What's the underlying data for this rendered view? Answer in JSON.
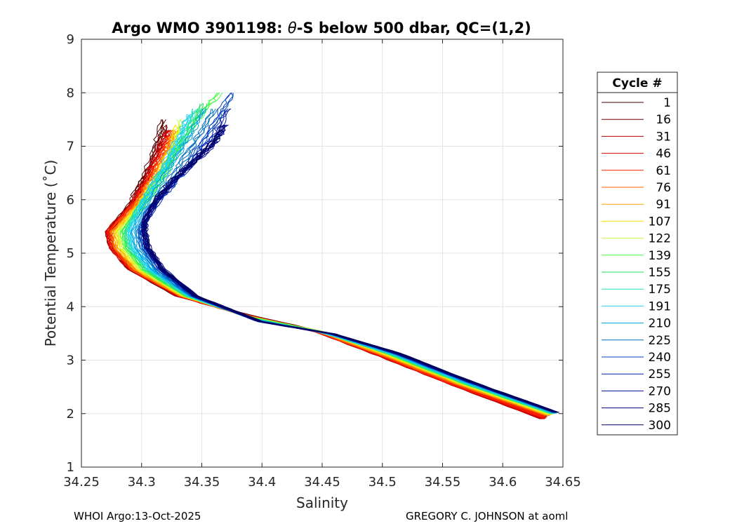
{
  "chart_data": {
    "type": "line",
    "title_pre": "Argo WMO 3901198: ",
    "title_theta": "θ",
    "title_post": "-S below 500 dbar,  QC=(1,2)",
    "xlabel": "Salinity",
    "ylabel": "Potential Temperature (˚C)",
    "xlim": [
      34.25,
      34.65
    ],
    "ylim": [
      1,
      9
    ],
    "x_ticks": [
      "34.25",
      "34.3",
      "34.35",
      "34.4",
      "34.45",
      "34.5",
      "34.55",
      "34.6",
      "34.65"
    ],
    "y_ticks": [
      "1",
      "2",
      "3",
      "4",
      "5",
      "6",
      "7",
      "8",
      "9"
    ],
    "grid": true,
    "legend_title": "Cycle #",
    "legend_position": "right",
    "series": [
      {
        "name": "1",
        "color": "#4a0000",
        "points": [
          [
            34.318,
            7.5
          ],
          [
            34.312,
            7.0
          ],
          [
            34.302,
            6.4
          ],
          [
            34.29,
            5.9
          ],
          [
            34.272,
            5.4
          ],
          [
            34.275,
            5.1
          ],
          [
            34.29,
            4.7
          ],
          [
            34.33,
            4.2
          ],
          [
            34.385,
            3.85
          ],
          [
            34.445,
            3.55
          ],
          [
            34.5,
            3.1
          ],
          [
            34.56,
            2.55
          ],
          [
            34.635,
            1.95
          ]
        ]
      },
      {
        "name": "16",
        "color": "#7a0000",
        "points": [
          [
            34.32,
            7.4
          ],
          [
            34.314,
            7.0
          ],
          [
            34.303,
            6.4
          ],
          [
            34.291,
            5.9
          ],
          [
            34.273,
            5.4
          ],
          [
            34.276,
            5.1
          ],
          [
            34.291,
            4.7
          ],
          [
            34.331,
            4.2
          ],
          [
            34.386,
            3.86
          ],
          [
            34.446,
            3.55
          ],
          [
            34.5,
            3.09
          ],
          [
            34.56,
            2.54
          ],
          [
            34.634,
            1.92
          ]
        ]
      },
      {
        "name": "31",
        "color": "#b30000",
        "points": [
          [
            34.322,
            7.3
          ],
          [
            34.315,
            6.95
          ],
          [
            34.304,
            6.4
          ],
          [
            34.292,
            5.9
          ],
          [
            34.271,
            5.4
          ],
          [
            34.275,
            5.1
          ],
          [
            34.29,
            4.7
          ],
          [
            34.33,
            4.2
          ],
          [
            34.386,
            3.84
          ],
          [
            34.446,
            3.53
          ],
          [
            34.499,
            3.07
          ],
          [
            34.559,
            2.53
          ],
          [
            34.633,
            1.9
          ]
        ]
      },
      {
        "name": "46",
        "color": "#e00000",
        "points": [
          [
            34.323,
            7.3
          ],
          [
            34.316,
            6.95
          ],
          [
            34.305,
            6.4
          ],
          [
            34.292,
            5.9
          ],
          [
            34.272,
            5.4
          ],
          [
            34.275,
            5.1
          ],
          [
            34.291,
            4.7
          ],
          [
            34.331,
            4.2
          ],
          [
            34.387,
            3.84
          ],
          [
            34.447,
            3.53
          ],
          [
            34.5,
            3.07
          ],
          [
            34.56,
            2.53
          ],
          [
            34.634,
            1.91
          ]
        ]
      },
      {
        "name": "61",
        "color": "#ff2000",
        "points": [
          [
            34.325,
            7.2
          ],
          [
            34.318,
            6.9
          ],
          [
            34.306,
            6.4
          ],
          [
            34.293,
            5.9
          ],
          [
            34.273,
            5.4
          ],
          [
            34.276,
            5.1
          ],
          [
            34.292,
            4.7
          ],
          [
            34.332,
            4.2
          ],
          [
            34.387,
            3.83
          ],
          [
            34.447,
            3.52
          ],
          [
            34.501,
            3.07
          ],
          [
            34.561,
            2.53
          ],
          [
            34.635,
            1.93
          ]
        ]
      },
      {
        "name": "76",
        "color": "#ff6000",
        "points": [
          [
            34.326,
            7.3
          ],
          [
            34.32,
            6.9
          ],
          [
            34.308,
            6.4
          ],
          [
            34.294,
            5.9
          ],
          [
            34.275,
            5.4
          ],
          [
            34.278,
            5.1
          ],
          [
            34.293,
            4.7
          ],
          [
            34.333,
            4.2
          ],
          [
            34.388,
            3.82
          ],
          [
            34.448,
            3.52
          ],
          [
            34.502,
            3.08
          ],
          [
            34.562,
            2.55
          ],
          [
            34.637,
            1.96
          ]
        ]
      },
      {
        "name": "91",
        "color": "#ffa000",
        "points": [
          [
            34.328,
            7.3
          ],
          [
            34.322,
            6.9
          ],
          [
            34.31,
            6.4
          ],
          [
            34.296,
            5.9
          ],
          [
            34.277,
            5.4
          ],
          [
            34.28,
            5.1
          ],
          [
            34.295,
            4.7
          ],
          [
            34.334,
            4.2
          ],
          [
            34.389,
            3.82
          ],
          [
            34.449,
            3.53
          ],
          [
            34.503,
            3.09
          ],
          [
            34.563,
            2.56
          ],
          [
            34.638,
            1.97
          ]
        ]
      },
      {
        "name": "107",
        "color": "#ffe000",
        "points": [
          [
            34.33,
            7.4
          ],
          [
            34.324,
            6.9
          ],
          [
            34.312,
            6.4
          ],
          [
            34.298,
            5.9
          ],
          [
            34.279,
            5.4
          ],
          [
            34.282,
            5.1
          ],
          [
            34.297,
            4.7
          ],
          [
            34.335,
            4.2
          ],
          [
            34.39,
            3.81
          ],
          [
            34.45,
            3.53
          ],
          [
            34.504,
            3.1
          ],
          [
            34.564,
            2.57
          ],
          [
            34.639,
            1.98
          ]
        ]
      },
      {
        "name": "122",
        "color": "#c0ff40",
        "points": [
          [
            34.333,
            7.5
          ],
          [
            34.327,
            6.9
          ],
          [
            34.315,
            6.4
          ],
          [
            34.3,
            5.9
          ],
          [
            34.281,
            5.4
          ],
          [
            34.284,
            5.1
          ],
          [
            34.299,
            4.7
          ],
          [
            34.336,
            4.2
          ],
          [
            34.391,
            3.8
          ],
          [
            34.451,
            3.53
          ],
          [
            34.505,
            3.11
          ],
          [
            34.565,
            2.58
          ],
          [
            34.64,
            1.99
          ]
        ]
      },
      {
        "name": "139",
        "color": "#40ff40",
        "points": [
          [
            34.365,
            8.0
          ],
          [
            34.35,
            7.6
          ],
          [
            34.335,
            7.1
          ],
          [
            34.32,
            6.5
          ],
          [
            34.303,
            5.9
          ],
          [
            34.284,
            5.4
          ],
          [
            34.287,
            5.1
          ],
          [
            34.301,
            4.7
          ],
          [
            34.337,
            4.2
          ],
          [
            34.392,
            3.79
          ],
          [
            34.452,
            3.52
          ],
          [
            34.506,
            3.11
          ],
          [
            34.566,
            2.58
          ],
          [
            34.641,
            2.0
          ]
        ]
      },
      {
        "name": "155",
        "color": "#20e060",
        "points": [
          [
            34.352,
            7.8
          ],
          [
            34.338,
            7.3
          ],
          [
            34.324,
            6.8
          ],
          [
            34.31,
            6.3
          ],
          [
            34.296,
            5.8
          ],
          [
            34.286,
            5.4
          ],
          [
            34.289,
            5.1
          ],
          [
            34.303,
            4.7
          ],
          [
            34.338,
            4.2
          ],
          [
            34.393,
            3.78
          ],
          [
            34.453,
            3.51
          ],
          [
            34.507,
            3.11
          ],
          [
            34.567,
            2.58
          ],
          [
            34.641,
            2.0
          ]
        ]
      },
      {
        "name": "175",
        "color": "#20e0c0",
        "points": [
          [
            34.345,
            7.7
          ],
          [
            34.335,
            7.2
          ],
          [
            34.322,
            6.7
          ],
          [
            34.308,
            6.2
          ],
          [
            34.296,
            5.8
          ],
          [
            34.288,
            5.4
          ],
          [
            34.291,
            5.1
          ],
          [
            34.305,
            4.7
          ],
          [
            34.339,
            4.2
          ],
          [
            34.393,
            3.77
          ],
          [
            34.453,
            3.5
          ],
          [
            34.508,
            3.11
          ],
          [
            34.568,
            2.58
          ],
          [
            34.642,
            2.0
          ]
        ]
      },
      {
        "name": "191",
        "color": "#20d0ff",
        "points": [
          [
            34.34,
            7.6
          ],
          [
            34.332,
            7.2
          ],
          [
            34.32,
            6.7
          ],
          [
            34.308,
            6.2
          ],
          [
            34.297,
            5.8
          ],
          [
            34.29,
            5.4
          ],
          [
            34.293,
            5.1
          ],
          [
            34.307,
            4.7
          ],
          [
            34.34,
            4.2
          ],
          [
            34.394,
            3.76
          ],
          [
            34.454,
            3.5
          ],
          [
            34.509,
            3.12
          ],
          [
            34.569,
            2.59
          ],
          [
            34.643,
            2.01
          ]
        ]
      },
      {
        "name": "210",
        "color": "#00a0e0",
        "points": [
          [
            34.352,
            7.7
          ],
          [
            34.34,
            7.2
          ],
          [
            34.326,
            6.7
          ],
          [
            34.312,
            6.2
          ],
          [
            34.301,
            5.8
          ],
          [
            34.293,
            5.4
          ],
          [
            34.296,
            5.1
          ],
          [
            34.309,
            4.7
          ],
          [
            34.341,
            4.2
          ],
          [
            34.395,
            3.75
          ],
          [
            34.455,
            3.5
          ],
          [
            34.51,
            3.12
          ],
          [
            34.57,
            2.59
          ],
          [
            34.643,
            2.01
          ]
        ]
      },
      {
        "name": "225",
        "color": "#0070c0",
        "points": [
          [
            34.36,
            7.7
          ],
          [
            34.348,
            7.2
          ],
          [
            34.333,
            6.7
          ],
          [
            34.318,
            6.2
          ],
          [
            34.306,
            5.8
          ],
          [
            34.297,
            5.4
          ],
          [
            34.3,
            5.1
          ],
          [
            34.312,
            4.7
          ],
          [
            34.342,
            4.2
          ],
          [
            34.396,
            3.74
          ],
          [
            34.456,
            3.5
          ],
          [
            34.511,
            3.13
          ],
          [
            34.571,
            2.6
          ],
          [
            34.644,
            2.02
          ]
        ]
      },
      {
        "name": "240",
        "color": "#0040c0",
        "points": [
          [
            34.375,
            8.0
          ],
          [
            34.362,
            7.5
          ],
          [
            34.348,
            7.0
          ],
          [
            34.334,
            6.5
          ],
          [
            34.318,
            6.1
          ],
          [
            34.305,
            5.8
          ],
          [
            34.299,
            5.4
          ],
          [
            34.302,
            5.1
          ],
          [
            34.314,
            4.7
          ],
          [
            34.343,
            4.2
          ],
          [
            34.397,
            3.73
          ],
          [
            34.457,
            3.5
          ],
          [
            34.511,
            3.13
          ],
          [
            34.571,
            2.6
          ],
          [
            34.644,
            2.02
          ]
        ]
      },
      {
        "name": "255",
        "color": "#0020b0",
        "points": [
          [
            34.372,
            7.7
          ],
          [
            34.36,
            7.2
          ],
          [
            34.346,
            6.8
          ],
          [
            34.33,
            6.4
          ],
          [
            34.315,
            6.0
          ],
          [
            34.303,
            5.6
          ],
          [
            34.301,
            5.4
          ],
          [
            34.304,
            5.1
          ],
          [
            34.316,
            4.7
          ],
          [
            34.344,
            4.2
          ],
          [
            34.398,
            3.72
          ],
          [
            34.458,
            3.49
          ],
          [
            34.512,
            3.13
          ],
          [
            34.572,
            2.6
          ],
          [
            34.645,
            2.02
          ]
        ]
      },
      {
        "name": "270",
        "color": "#0010a0",
        "points": [
          [
            34.37,
            7.4
          ],
          [
            34.358,
            7.0
          ],
          [
            34.344,
            6.7
          ],
          [
            34.329,
            6.4
          ],
          [
            34.314,
            6.0
          ],
          [
            34.303,
            5.6
          ],
          [
            34.302,
            5.4
          ],
          [
            34.305,
            5.1
          ],
          [
            34.317,
            4.7
          ],
          [
            34.344,
            4.2
          ],
          [
            34.398,
            3.72
          ],
          [
            34.458,
            3.49
          ],
          [
            34.512,
            3.13
          ],
          [
            34.572,
            2.6
          ],
          [
            34.645,
            2.02
          ]
        ]
      },
      {
        "name": "285",
        "color": "#00007a",
        "points": [
          [
            34.368,
            7.3
          ],
          [
            34.357,
            7.0
          ],
          [
            34.343,
            6.7
          ],
          [
            34.328,
            6.4
          ],
          [
            34.313,
            6.0
          ],
          [
            34.303,
            5.6
          ],
          [
            34.303,
            5.4
          ],
          [
            34.306,
            5.1
          ],
          [
            34.318,
            4.7
          ],
          [
            34.345,
            4.2
          ],
          [
            34.399,
            3.72
          ],
          [
            34.459,
            3.49
          ],
          [
            34.513,
            3.13
          ],
          [
            34.573,
            2.6
          ],
          [
            34.645,
            2.02
          ]
        ]
      },
      {
        "name": "300",
        "color": "#000060",
        "points": [
          [
            34.368,
            7.4
          ],
          [
            34.356,
            7.0
          ],
          [
            34.342,
            6.7
          ],
          [
            34.327,
            6.4
          ],
          [
            34.312,
            6.0
          ],
          [
            34.302,
            5.6
          ],
          [
            34.302,
            5.4
          ],
          [
            34.305,
            5.1
          ],
          [
            34.317,
            4.7
          ],
          [
            34.345,
            4.2
          ],
          [
            34.399,
            3.72
          ],
          [
            34.459,
            3.49
          ],
          [
            34.513,
            3.13
          ],
          [
            34.573,
            2.6
          ],
          [
            34.645,
            2.02
          ]
        ]
      }
    ]
  },
  "footer": {
    "left": "WHOI Argo:13-Oct-2025",
    "right": "GREGORY C. JOHNSON at aoml"
  }
}
